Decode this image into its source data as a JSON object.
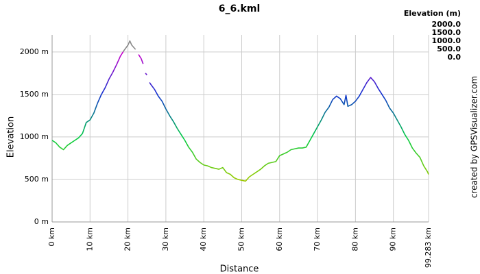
{
  "chart_data": {
    "type": "line",
    "title": "6_6.kml",
    "x_label": "Distance",
    "y_label": "Elevation",
    "credit": "created by GPSVisualizer.com",
    "legend_title": "Elevation (m)",
    "color_scale": [
      {
        "value": 2000,
        "label": "2000.0",
        "color": "#cc00cc"
      },
      {
        "value": 1500,
        "label": "1500.0",
        "color": "#1030d0"
      },
      {
        "value": 1000,
        "label": "1000.0",
        "color": "#00cc44"
      },
      {
        "value": 500,
        "label": "500.0",
        "color": "#99cc00"
      },
      {
        "value": 0,
        "label": "0.0",
        "color": "#ff0000"
      }
    ],
    "over_color": "#888888",
    "x": [
      0,
      1,
      2,
      3,
      4,
      5,
      6,
      7,
      8,
      9,
      10,
      11,
      12,
      13,
      14,
      15,
      16,
      17,
      18,
      19,
      20,
      20.5,
      21,
      22,
      22.3,
      22.8,
      23.5,
      24,
      24.2,
      24.6,
      25,
      25.3,
      25.7,
      26,
      27,
      28,
      29,
      30,
      31,
      32,
      33,
      34,
      35,
      36,
      37,
      38,
      39,
      40,
      41,
      42,
      43,
      44,
      45,
      46,
      47,
      48,
      49,
      50,
      51,
      52,
      53,
      54,
      55,
      56,
      57,
      58,
      59,
      60,
      61,
      62,
      63,
      64,
      65,
      66,
      67,
      68,
      69,
      70,
      71,
      72,
      73,
      74,
      75,
      76,
      77,
      77.5,
      78,
      79,
      80,
      81,
      82,
      83,
      84,
      85,
      86,
      87,
      88,
      89,
      90,
      91,
      92,
      93,
      94,
      95,
      96,
      97,
      98,
      99,
      99.283
    ],
    "values": [
      960,
      930,
      880,
      850,
      900,
      930,
      960,
      990,
      1040,
      1170,
      1200,
      1280,
      1400,
      1500,
      1580,
      1680,
      1760,
      1850,
      1950,
      2020,
      2080,
      2130,
      2080,
      2030,
      null,
      1970,
      1920,
      1860,
      null,
      1750,
      1730,
      null,
      1640,
      1620,
      1560,
      1480,
      1420,
      1330,
      1250,
      1180,
      1100,
      1030,
      960,
      880,
      820,
      740,
      700,
      670,
      660,
      640,
      630,
      620,
      640,
      580,
      560,
      520,
      500,
      490,
      480,
      530,
      560,
      590,
      620,
      660,
      690,
      700,
      710,
      780,
      800,
      820,
      850,
      860,
      870,
      870,
      880,
      960,
      1040,
      1120,
      1200,
      1290,
      1350,
      1440,
      1480,
      1450,
      1380,
      1490,
      1360,
      1380,
      1420,
      1480,
      1560,
      1640,
      1700,
      1650,
      1570,
      1500,
      1430,
      1340,
      1280,
      1200,
      1120,
      1030,
      960,
      870,
      810,
      760,
      660,
      590,
      560
    ],
    "xlim": [
      0,
      99.283
    ],
    "ylim": [
      0,
      2200
    ],
    "xticks": [
      {
        "value": 0,
        "label": "0 km"
      },
      {
        "value": 10,
        "label": "10 km"
      },
      {
        "value": 20,
        "label": "20 km"
      },
      {
        "value": 30,
        "label": "30 km"
      },
      {
        "value": 40,
        "label": "40 km"
      },
      {
        "value": 50,
        "label": "50 km"
      },
      {
        "value": 60,
        "label": "60 km"
      },
      {
        "value": 70,
        "label": "70 km"
      },
      {
        "value": 80,
        "label": "80 km"
      },
      {
        "value": 90,
        "label": "90 km"
      },
      {
        "value": 99.283,
        "label": "99.283 km"
      }
    ],
    "yticks": [
      {
        "value": 0,
        "label": "0 m"
      },
      {
        "value": 500,
        "label": "500 m"
      },
      {
        "value": 1000,
        "label": "1000 m"
      },
      {
        "value": 1500,
        "label": "1500 m"
      },
      {
        "value": 2000,
        "label": "2000 m"
      }
    ],
    "grid": true
  }
}
